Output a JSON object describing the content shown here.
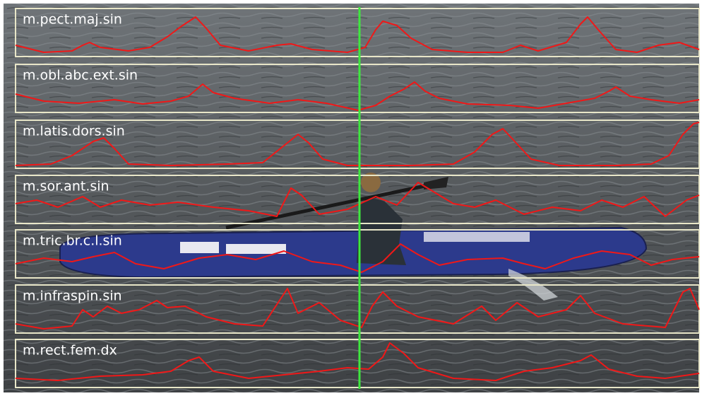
{
  "channels": [
    {
      "label": "m.pect.maj.sin"
    },
    {
      "label": "m.obl.abc.ext.sin"
    },
    {
      "label": "m.latis.dors.sin"
    },
    {
      "label": "m.sor.ant.sin"
    },
    {
      "label": "m.tric.br.c.l.sin"
    },
    {
      "label": "m.infraspin.sin"
    },
    {
      "label": "m.rect.fem.dx"
    }
  ]
}
